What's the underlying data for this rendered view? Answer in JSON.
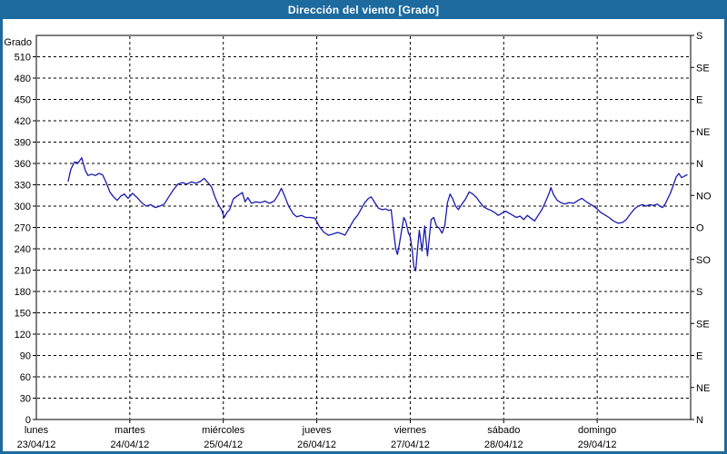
{
  "window": {
    "title": "Dirección del viento [Grado]"
  },
  "colors": {
    "titlebar_bg": "#1d6a9e",
    "outer_border": "#1d6a9e",
    "title_text": "#ffffff",
    "plot_frame": "#000000",
    "grid": "#000000",
    "series_line": "#1a1ab0",
    "background": "#ffffff"
  },
  "chart_data": {
    "type": "line",
    "title": "Dirección del viento [Grado]",
    "ylabel": "Grado",
    "grid": "dashed",
    "y_left_axis": {
      "label": "Grado",
      "min": 0,
      "max": 540,
      "tick_step": 30,
      "highest_labeled_tick": 510
    },
    "y_right_axis": {
      "tick_step": 45,
      "labels_bottom_to_top": [
        "N",
        "NE",
        "E",
        "SE",
        "S",
        "SO",
        "O",
        "NO",
        "N",
        "NE",
        "E",
        "SE",
        "S"
      ]
    },
    "x_axis": {
      "unit": "days",
      "range_days": [
        0,
        7
      ],
      "day_gridlines_at": [
        1,
        2,
        3,
        4,
        5,
        6
      ],
      "days": [
        {
          "name": "lunes",
          "date": "23/04/12"
        },
        {
          "name": "martes",
          "date": "24/04/12"
        },
        {
          "name": "miércoles",
          "date": "25/04/12"
        },
        {
          "name": "jueves",
          "date": "26/04/12"
        },
        {
          "name": "viernes",
          "date": "27/04/12"
        },
        {
          "name": "sábado",
          "date": "28/04/12"
        },
        {
          "name": "domingo",
          "date": "29/04/12"
        }
      ]
    },
    "series": [
      {
        "name": "wind-direction-degrees",
        "color": "#1a1ab0",
        "points": [
          [
            0.34,
            335
          ],
          [
            0.369,
            352
          ],
          [
            0.408,
            362
          ],
          [
            0.447,
            361
          ],
          [
            0.485,
            368
          ],
          [
            0.524,
            350
          ],
          [
            0.553,
            343
          ],
          [
            0.592,
            345
          ],
          [
            0.631,
            343
          ],
          [
            0.67,
            346
          ],
          [
            0.709,
            344
          ],
          [
            0.748,
            333
          ],
          [
            0.786,
            320
          ],
          [
            0.825,
            313
          ],
          [
            0.864,
            308
          ],
          [
            0.903,
            314
          ],
          [
            0.942,
            317
          ],
          [
            0.981,
            311
          ],
          [
            1.029,
            318
          ],
          [
            1.078,
            312
          ],
          [
            1.126,
            305
          ],
          [
            1.175,
            300
          ],
          [
            1.223,
            302
          ],
          [
            1.272,
            298
          ],
          [
            1.32,
            300
          ],
          [
            1.369,
            303
          ],
          [
            1.417,
            313
          ],
          [
            1.466,
            323
          ],
          [
            1.515,
            331
          ],
          [
            1.563,
            333
          ],
          [
            1.612,
            331
          ],
          [
            1.66,
            334
          ],
          [
            1.709,
            332
          ],
          [
            1.757,
            335
          ],
          [
            1.796,
            339
          ],
          [
            1.835,
            333
          ],
          [
            1.874,
            327
          ],
          [
            1.913,
            312
          ],
          [
            1.951,
            301
          ],
          [
            1.981,
            295
          ],
          [
            2.01,
            284
          ],
          [
            2.039,
            291
          ],
          [
            2.068,
            295
          ],
          [
            2.107,
            310
          ],
          [
            2.155,
            315
          ],
          [
            2.204,
            319
          ],
          [
            2.233,
            306
          ],
          [
            2.262,
            312
          ],
          [
            2.301,
            304
          ],
          [
            2.35,
            306
          ],
          [
            2.398,
            305
          ],
          [
            2.447,
            307
          ],
          [
            2.495,
            304
          ],
          [
            2.544,
            307
          ],
          [
            2.583,
            315
          ],
          [
            2.621,
            325
          ],
          [
            2.66,
            313
          ],
          [
            2.699,
            300
          ],
          [
            2.748,
            289
          ],
          [
            2.786,
            285
          ],
          [
            2.835,
            287
          ],
          [
            2.883,
            284
          ],
          [
            2.932,
            284
          ],
          [
            2.981,
            283
          ],
          [
            3.029,
            271
          ],
          [
            3.078,
            263
          ],
          [
            3.126,
            259
          ],
          [
            3.175,
            261
          ],
          [
            3.223,
            263
          ],
          [
            3.272,
            261
          ],
          [
            3.301,
            259
          ],
          [
            3.35,
            270
          ],
          [
            3.398,
            281
          ],
          [
            3.437,
            287
          ],
          [
            3.476,
            296
          ],
          [
            3.515,
            305
          ],
          [
            3.553,
            311
          ],
          [
            3.583,
            313
          ],
          [
            3.621,
            305
          ],
          [
            3.66,
            297
          ],
          [
            3.699,
            295
          ],
          [
            3.738,
            296
          ],
          [
            3.767,
            294
          ],
          [
            3.796,
            295
          ],
          [
            3.825,
            262
          ],
          [
            3.845,
            240
          ],
          [
            3.864,
            232
          ],
          [
            3.883,
            246
          ],
          [
            3.913,
            270
          ],
          [
            3.932,
            284
          ],
          [
            3.951,
            279
          ],
          [
            3.981,
            262
          ],
          [
            4.0,
            257
          ],
          [
            4.019,
            240
          ],
          [
            4.039,
            215
          ],
          [
            4.058,
            209
          ],
          [
            4.078,
            240
          ],
          [
            4.097,
            266
          ],
          [
            4.126,
            237
          ],
          [
            4.155,
            272
          ],
          [
            4.184,
            230
          ],
          [
            4.223,
            281
          ],
          [
            4.252,
            284
          ],
          [
            4.281,
            272
          ],
          [
            4.311,
            269
          ],
          [
            4.34,
            262
          ],
          [
            4.369,
            272
          ],
          [
            4.398,
            305
          ],
          [
            4.427,
            317
          ],
          [
            4.456,
            310
          ],
          [
            4.485,
            300
          ],
          [
            4.515,
            295
          ],
          [
            4.553,
            303
          ],
          [
            4.592,
            310
          ],
          [
            4.631,
            320
          ],
          [
            4.67,
            317
          ],
          [
            4.709,
            312
          ],
          [
            4.748,
            305
          ],
          [
            4.786,
            299
          ],
          [
            4.825,
            296
          ],
          [
            4.864,
            294
          ],
          [
            4.903,
            291
          ],
          [
            4.942,
            287
          ],
          [
            4.981,
            290
          ],
          [
            5.019,
            293
          ],
          [
            5.058,
            290
          ],
          [
            5.097,
            287
          ],
          [
            5.136,
            284
          ],
          [
            5.175,
            286
          ],
          [
            5.214,
            281
          ],
          [
            5.252,
            287
          ],
          [
            5.291,
            283
          ],
          [
            5.33,
            279
          ],
          [
            5.369,
            287
          ],
          [
            5.408,
            295
          ],
          [
            5.447,
            306
          ],
          [
            5.485,
            318
          ],
          [
            5.505,
            326
          ],
          [
            5.534,
            316
          ],
          [
            5.573,
            308
          ],
          [
            5.612,
            305
          ],
          [
            5.65,
            303
          ],
          [
            5.699,
            305
          ],
          [
            5.748,
            304
          ],
          [
            5.796,
            308
          ],
          [
            5.835,
            311
          ],
          [
            5.874,
            307
          ],
          [
            5.922,
            303
          ],
          [
            5.961,
            300
          ],
          [
            6.0,
            296
          ],
          [
            6.039,
            291
          ],
          [
            6.078,
            288
          ],
          [
            6.126,
            284
          ],
          [
            6.175,
            279
          ],
          [
            6.223,
            276
          ],
          [
            6.272,
            277
          ],
          [
            6.311,
            281
          ],
          [
            6.35,
            288
          ],
          [
            6.398,
            296
          ],
          [
            6.437,
            300
          ],
          [
            6.485,
            302
          ],
          [
            6.524,
            300
          ],
          [
            6.563,
            302
          ],
          [
            6.602,
            301
          ],
          [
            6.641,
            303
          ],
          [
            6.67,
            300
          ],
          [
            6.699,
            298
          ],
          [
            6.728,
            303
          ],
          [
            6.757,
            311
          ],
          [
            6.786,
            319
          ],
          [
            6.816,
            330
          ],
          [
            6.845,
            341
          ],
          [
            6.874,
            346
          ],
          [
            6.903,
            340
          ],
          [
            6.932,
            342
          ],
          [
            6.961,
            344
          ]
        ]
      }
    ]
  }
}
